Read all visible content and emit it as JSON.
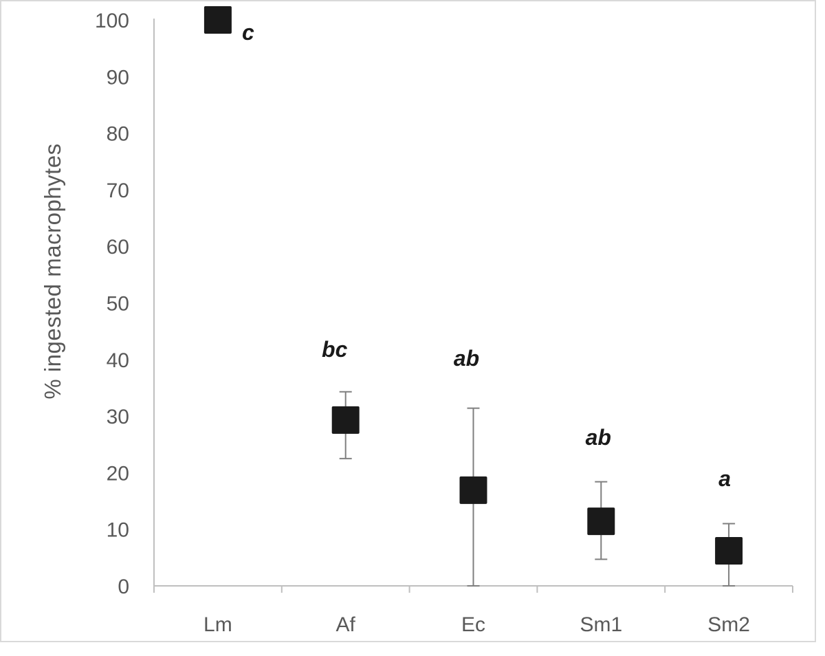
{
  "chart_data": {
    "type": "scatter",
    "title": "",
    "xlabel": "",
    "ylabel": "% ingested macrophytes",
    "ylim": [
      0,
      100
    ],
    "yticks": [
      0,
      10,
      20,
      30,
      40,
      50,
      60,
      70,
      80,
      90,
      100
    ],
    "ytick_labels": [
      "0",
      "10",
      "20",
      "30",
      "40",
      "50",
      "60",
      "70",
      "80",
      "90",
      "100"
    ],
    "categories": [
      "Lm",
      "Af",
      "Ec",
      "Sm1",
      "Sm2"
    ],
    "values": [
      100,
      29.3,
      16.9,
      11.4,
      6.2
    ],
    "error_low": [
      100,
      22.5,
      0,
      4.7,
      0
    ],
    "error_high": [
      100,
      34.3,
      31.4,
      18.4,
      11.0
    ],
    "significance_letters": [
      "c",
      "bc",
      "ab",
      "ab",
      "a"
    ],
    "marker": "square",
    "marker_color": "#1a1a1a",
    "axis_color": "#bfbfbf",
    "text_color": "#595959",
    "errorbar_color": "#7f7f7f",
    "grid": false,
    "legend": "none"
  }
}
